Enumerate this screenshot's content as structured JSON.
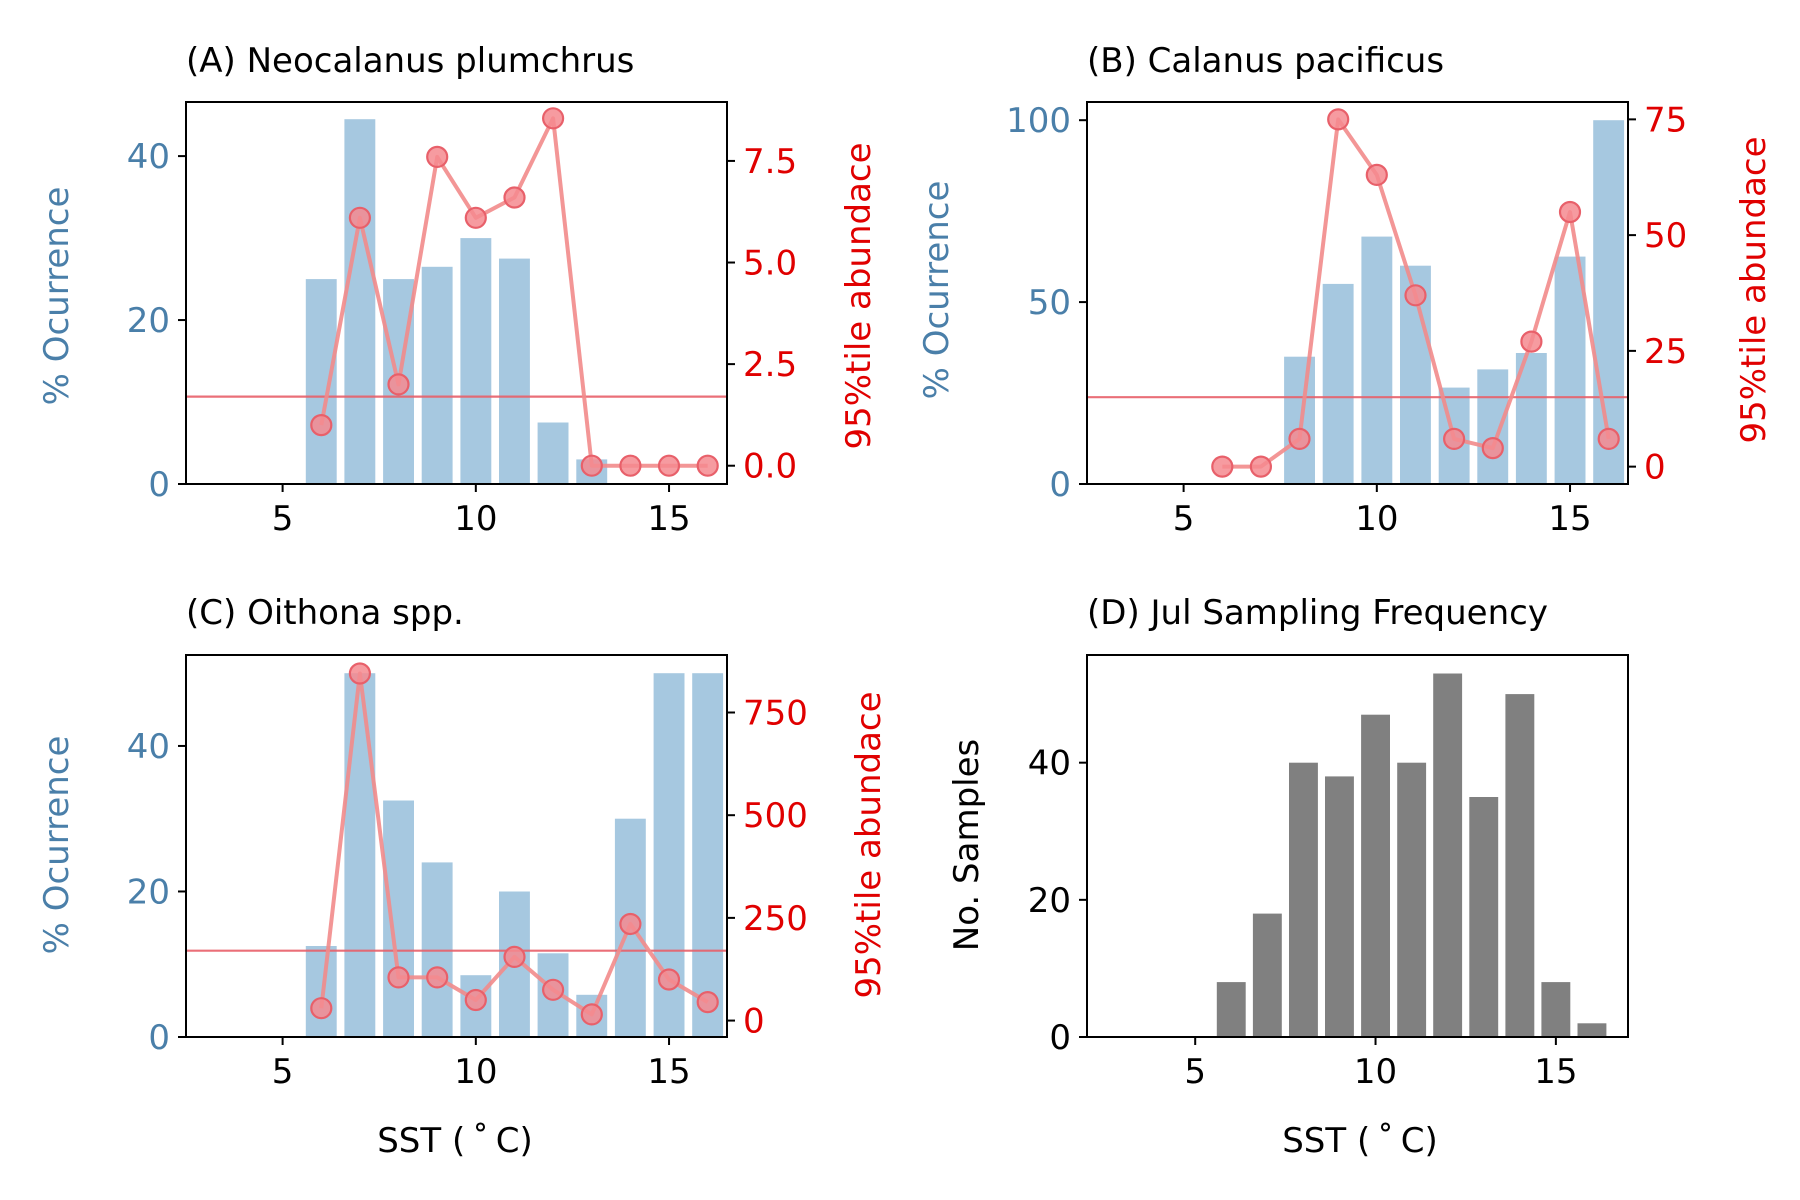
{
  "colors": {
    "occurrence_bar": "#a6c8e0",
    "occurrence_axis": "#4a7fa9",
    "abundance": "#e00000",
    "abundance_line": "#f28b8b",
    "abundance_marker_fill": "#f48a8f",
    "abundance_marker_edge": "#e8606a",
    "sample_bar": "#808080",
    "axis": "#000000"
  },
  "chart_data": [
    {
      "id": "A",
      "type": "bar+line",
      "title": "(A) Neocalanus plumchrus",
      "xlabel": "",
      "xlim": [
        2.5,
        16.5
      ],
      "xticks": [
        5,
        10,
        15
      ],
      "ylabel_left": "% Ocurrence",
      "ylim_left": [
        0,
        46.6
      ],
      "yticks_left": [
        0,
        20,
        40
      ],
      "ylabel_right": "95%tile abundace",
      "ylim_right": [
        -0.45,
        8.95
      ],
      "yticks_right": [
        0.0,
        2.5,
        5.0,
        7.5
      ],
      "yticklabels_right": [
        "0.0",
        "2.5",
        "5.0",
        "7.5"
      ],
      "threshold": 1.7,
      "bars": {
        "name": "% Ocurrence",
        "x": [
          6,
          7,
          8,
          9,
          10,
          11,
          12,
          13,
          14,
          15,
          16
        ],
        "values": [
          25,
          44.5,
          25,
          26.5,
          30,
          27.5,
          7.5,
          3,
          0,
          0,
          0
        ]
      },
      "line": {
        "name": "95%tile abundance",
        "x": [
          6,
          7,
          8,
          9,
          10,
          11,
          12,
          13,
          14,
          15,
          16
        ],
        "values": [
          1.0,
          6.1,
          2.0,
          7.6,
          6.1,
          6.6,
          8.55,
          0,
          0,
          0,
          0
        ]
      }
    },
    {
      "id": "B",
      "type": "bar+line",
      "title": "(B) Calanus pacificus",
      "xlabel": "",
      "xlim": [
        2.5,
        16.5
      ],
      "xticks": [
        5,
        10,
        15
      ],
      "ylabel_left": "% Ocurrence",
      "ylim_left": [
        0,
        105
      ],
      "yticks_left": [
        0,
        50,
        100
      ],
      "ylabel_right": "95%tile abundace",
      "ylim_right": [
        -3.75,
        78.75
      ],
      "yticks_right": [
        0,
        25,
        50,
        75
      ],
      "yticklabels_right": [
        "0",
        "25",
        "50",
        "75"
      ],
      "threshold": 15,
      "bars": {
        "name": "% Ocurrence",
        "x": [
          6,
          7,
          8,
          9,
          10,
          11,
          12,
          13,
          14,
          15,
          16
        ],
        "values": [
          0,
          0,
          35,
          55,
          68,
          60,
          26.5,
          31.5,
          36,
          62.5,
          100
        ]
      },
      "line": {
        "name": "95%tile abundance",
        "x": [
          6,
          7,
          8,
          9,
          10,
          11,
          12,
          13,
          14,
          15,
          16
        ],
        "values": [
          0,
          0,
          6,
          75,
          63,
          37,
          6,
          4,
          27,
          55,
          6
        ]
      }
    },
    {
      "id": "C",
      "type": "bar+line",
      "title": "(C) Oithona spp.",
      "xlabel": "SST ($^\\circ$C)",
      "xlabel_display": "SST ( ˚ C)",
      "xlim": [
        2.5,
        16.5
      ],
      "xticks": [
        5,
        10,
        15
      ],
      "ylabel_left": "% Ocurrence",
      "ylim_left": [
        0,
        52.5
      ],
      "yticks_left": [
        0,
        20,
        40
      ],
      "ylabel_right": "95%tile abundace",
      "ylim_right": [
        -40,
        890
      ],
      "yticks_right": [
        0,
        250,
        500,
        750
      ],
      "yticklabels_right": [
        "0",
        "250",
        "500",
        "750"
      ],
      "threshold": 170,
      "bars": {
        "name": "% Ocurrence",
        "x": [
          6,
          7,
          8,
          9,
          10,
          11,
          12,
          13,
          14,
          15,
          16
        ],
        "values": [
          12.5,
          50,
          32.5,
          24,
          8.5,
          20,
          11.5,
          5.8,
          30,
          50,
          50
        ]
      },
      "line": {
        "name": "95%tile abundance",
        "x": [
          6,
          7,
          8,
          9,
          10,
          11,
          12,
          13,
          14,
          15,
          16
        ],
        "values": [
          30,
          845,
          105,
          105,
          50,
          155,
          75,
          15,
          235,
          100,
          45
        ]
      }
    },
    {
      "id": "D",
      "type": "bar",
      "title": "(D) Jul Sampling Frequency",
      "xlabel": "SST ($^\\circ$C)",
      "xlabel_display": "SST ( ˚ C)",
      "xlim": [
        2,
        17
      ],
      "xticks": [
        5,
        10,
        15
      ],
      "ylabel": "No. Samples",
      "ylim": [
        0,
        55.7
      ],
      "yticks": [
        0,
        20,
        40
      ],
      "bars": {
        "name": "No. Samples",
        "x": [
          6,
          7,
          8,
          9,
          10,
          11,
          12,
          13,
          14,
          15,
          16
        ],
        "values": [
          8,
          18,
          40,
          38,
          47,
          40,
          53,
          35,
          50,
          8,
          2
        ]
      }
    }
  ]
}
